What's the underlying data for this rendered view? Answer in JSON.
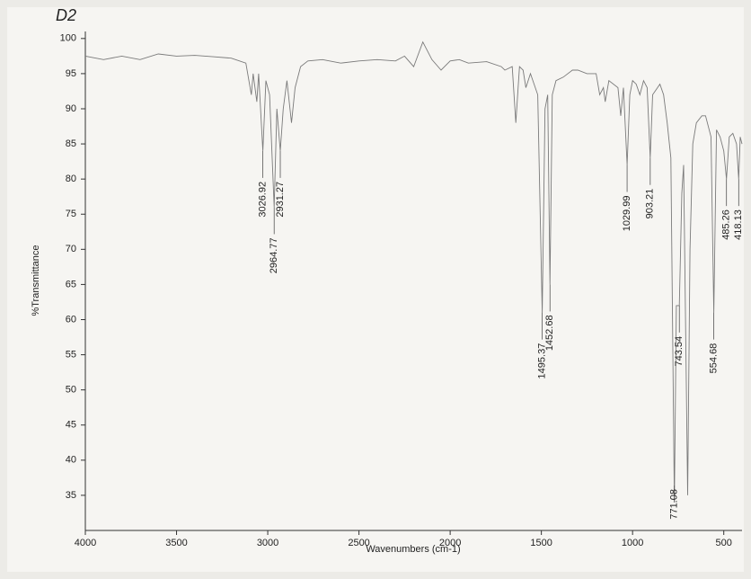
{
  "chart_data": {
    "type": "line",
    "title": "D2",
    "x_label": "Wavenumbers (cm-1)",
    "y_label": "%Transmittance",
    "xlim": [
      4000,
      400
    ],
    "ylim": [
      30,
      101
    ],
    "xticks": [
      4000,
      3500,
      3000,
      2500,
      2000,
      1500,
      1000,
      500
    ],
    "yticks": [
      35,
      40,
      45,
      50,
      55,
      60,
      65,
      70,
      75,
      80,
      85,
      90,
      95,
      100
    ],
    "color": "#7a7a7a",
    "x": [
      4000,
      3900,
      3800,
      3700,
      3600,
      3500,
      3400,
      3300,
      3200,
      3120,
      3090,
      3080,
      3060,
      3050,
      3026.92,
      3010,
      2990,
      2964.77,
      2950,
      2931.27,
      2915,
      2895,
      2870,
      2850,
      2820,
      2780,
      2700,
      2600,
      2500,
      2400,
      2300,
      2250,
      2200,
      2150,
      2100,
      2050,
      2000,
      1950,
      1900,
      1800,
      1720,
      1700,
      1660,
      1640,
      1620,
      1600,
      1585,
      1560,
      1520,
      1495.37,
      1480,
      1465,
      1452.68,
      1440,
      1420,
      1380,
      1330,
      1300,
      1250,
      1200,
      1180,
      1160,
      1150,
      1130,
      1080,
      1065,
      1050,
      1029.99,
      1015,
      1000,
      980,
      960,
      940,
      920,
      903.21,
      890,
      850,
      830,
      810,
      790,
      771.08,
      760,
      743.54,
      730,
      720,
      698,
      685,
      670,
      650,
      620,
      600,
      570,
      554.68,
      540,
      520,
      500,
      485.26,
      470,
      450,
      430,
      418.13,
      410,
      400
    ],
    "values": [
      97.5,
      97,
      97.5,
      97,
      97.8,
      97.5,
      97.6,
      97.4,
      97.2,
      96.5,
      92,
      95,
      91,
      95,
      84,
      94,
      92,
      76,
      90,
      84,
      90,
      94,
      88,
      93,
      96,
      96.8,
      97,
      96.5,
      96.8,
      97,
      96.8,
      97.5,
      96,
      99.5,
      97,
      95.5,
      96.8,
      97,
      96.5,
      96.7,
      96,
      95.5,
      96,
      88,
      96,
      95.5,
      93,
      95,
      92,
      61,
      90,
      92,
      65,
      92,
      94,
      94.5,
      95.5,
      95.5,
      95,
      95,
      92,
      93,
      91,
      94,
      93,
      89,
      93,
      82,
      92,
      94,
      93.5,
      92,
      94,
      93,
      83,
      92,
      93.5,
      92,
      88,
      83,
      34,
      62,
      62,
      78,
      82,
      35,
      70,
      85,
      88,
      89,
      89,
      86,
      61,
      87,
      86,
      84,
      80,
      86,
      86.5,
      85,
      80,
      86,
      85
    ],
    "peaks": [
      {
        "x": 3026.92,
        "y": 84
      },
      {
        "x": 2964.77,
        "y": 76
      },
      {
        "x": 2931.27,
        "y": 84
      },
      {
        "x": 1495.37,
        "y": 61
      },
      {
        "x": 1452.68,
        "y": 65
      },
      {
        "x": 1029.99,
        "y": 82
      },
      {
        "x": 903.21,
        "y": 83
      },
      {
        "x": 771.08,
        "y": 34
      },
      {
        "x": 743.54,
        "y": 62
      },
      {
        "x": 554.68,
        "y": 61
      },
      {
        "x": 485.26,
        "y": 80
      },
      {
        "x": 418.13,
        "y": 80
      }
    ]
  }
}
